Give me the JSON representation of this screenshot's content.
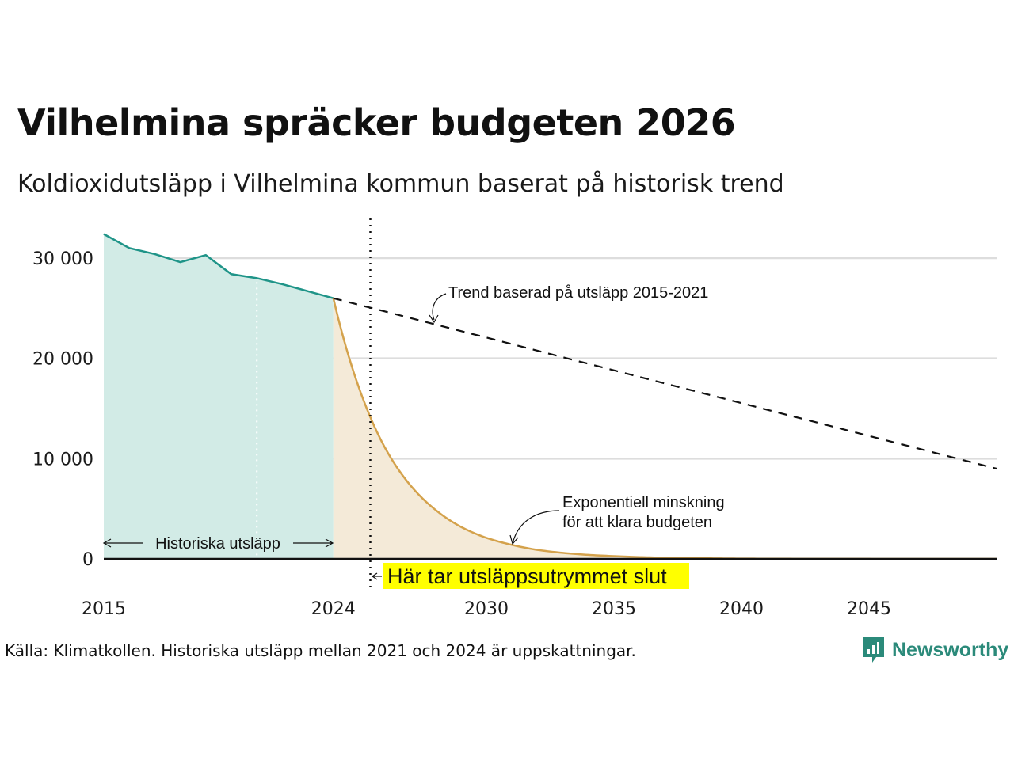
{
  "title": "Vilhelmina spräcker budgeten 2026",
  "subtitle": "Koldioxidutsläpp i Vilhelmina kommun baserat på historisk trend",
  "source": "Källa: Klimatkollen. Historiska utsläpp mellan 2021 och 2024 är uppskattningar.",
  "brand": {
    "name": "Newsworthy",
    "color": "#2b8a7a"
  },
  "chart_data": {
    "type": "area",
    "title": "Vilhelmina spräcker budgeten 2026",
    "xlim": [
      2015,
      2050
    ],
    "ylim": [
      0,
      33000
    ],
    "y_ticks": [
      {
        "value": 0,
        "label": "0"
      },
      {
        "value": 10000,
        "label": "10 000"
      },
      {
        "value": 20000,
        "label": "20 000"
      },
      {
        "value": 30000,
        "label": "30 000"
      }
    ],
    "x_ticks": [
      {
        "value": 2015,
        "label": "2015"
      },
      {
        "value": 2024,
        "label": "2024"
      },
      {
        "value": 2030,
        "label": "2030"
      },
      {
        "value": 2035,
        "label": "2035"
      },
      {
        "value": 2040,
        "label": "2040"
      },
      {
        "value": 2045,
        "label": "2045"
      }
    ],
    "colors": {
      "historical_line": "#1f9488",
      "historical_fill": "#d2ebe6",
      "budget_line": "#d4a24c",
      "budget_fill": "#f4ead8",
      "trend": "#111111",
      "grid": "#dddddd",
      "highlight": "#ffff00"
    },
    "series": [
      {
        "name": "Historiska utsläpp",
        "x": [
          2015,
          2016,
          2017,
          2018,
          2019,
          2020,
          2021,
          2022,
          2023,
          2024
        ],
        "values": [
          32400,
          31000,
          30400,
          29600,
          30300,
          28400,
          28000,
          27400,
          26700,
          26000
        ]
      },
      {
        "name": "Exponentiell minskning för att klara budgeten",
        "x": [
          2024,
          2025,
          2026,
          2027,
          2028,
          2029,
          2030,
          2031,
          2032,
          2033,
          2034,
          2035,
          2036,
          2037,
          2038,
          2039,
          2040,
          2045,
          2050
        ],
        "values": [
          26000,
          17100,
          11200,
          7400,
          4900,
          3200,
          2100,
          1400,
          900,
          600,
          400,
          280,
          180,
          120,
          80,
          50,
          30,
          5,
          1
        ]
      },
      {
        "name": "Trend baserad på utsläpp 2015-2021",
        "x": [
          2024,
          2050
        ],
        "values": [
          26000,
          9000
        ]
      }
    ],
    "estimate_marker_year": 2021,
    "budget_end_year": 2025.45,
    "annotations": {
      "trend": "Trend baserad på utsläpp 2015-2021",
      "exp_line1": "Exponentiell minskning",
      "exp_line2": "för att klara budgeten",
      "historical": "Historiska utsläpp",
      "budget_end": "Här tar utsläppsutrymmet slut"
    }
  }
}
